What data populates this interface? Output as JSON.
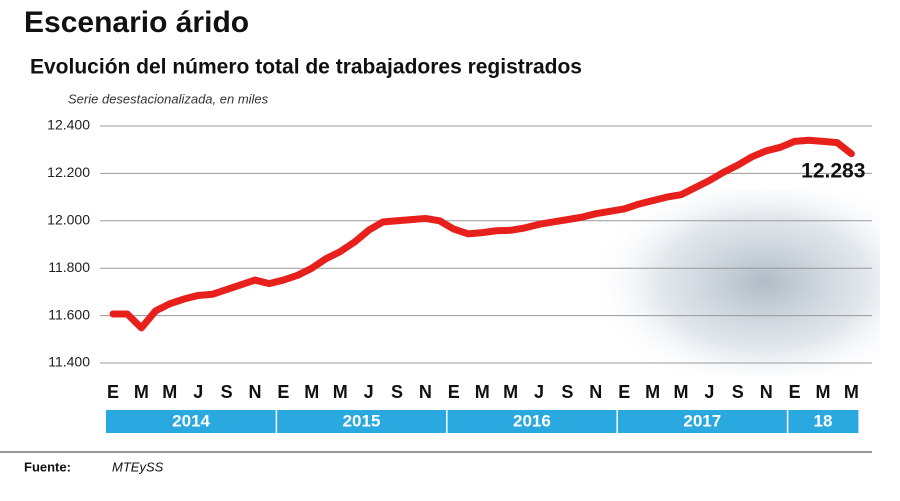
{
  "chart_data": {
    "type": "line",
    "title": "Escenario árido",
    "subtitle": "Evolución del número total de trabajadores registrados",
    "note": "Serie desestacionalizada, en miles",
    "source_label": "Fuente:",
    "source": "MTEySS",
    "categories": [
      "E",
      null,
      "M",
      null,
      "M",
      null,
      "J",
      null,
      "S",
      null,
      "N",
      null,
      "E",
      null,
      "M",
      null,
      "M",
      null,
      "J",
      null,
      "S",
      null,
      "N",
      null,
      "E",
      null,
      "M",
      null,
      "M",
      null,
      "J",
      null,
      "S",
      null,
      "N",
      null,
      "E",
      null,
      "M",
      null,
      "M",
      null,
      "J",
      null,
      "S",
      null,
      "N",
      null,
      "E",
      null,
      "M",
      null,
      "M"
    ],
    "years": [
      "2014",
      "2015",
      "2016",
      "2017",
      "18"
    ],
    "series": [
      {
        "color": "#e8201c",
        "values": [
          11607,
          11607,
          11548,
          11620,
          11650,
          11670,
          11685,
          11690,
          11710,
          11730,
          11750,
          11735,
          11750,
          11770,
          11800,
          11840,
          11870,
          11910,
          11960,
          11995,
          12000,
          12005,
          12010,
          12000,
          11965,
          11945,
          11950,
          11958,
          11960,
          11970,
          11985,
          11995,
          12005,
          12015,
          12030,
          12040,
          12050,
          12070,
          12085,
          12100,
          12110,
          12140,
          12170,
          12205,
          12235,
          12270,
          12295,
          12310,
          12335,
          12340,
          12335,
          12330,
          12283
        ],
        "value_labels": [
          null,
          null,
          null,
          null,
          null,
          null,
          null,
          null,
          null,
          null,
          null,
          null,
          null,
          null,
          null,
          null,
          null,
          null,
          null,
          null,
          null,
          null,
          null,
          null,
          null,
          null,
          null,
          null,
          null,
          null,
          null,
          null,
          null,
          null,
          null,
          null,
          null,
          null,
          null,
          null,
          null,
          null,
          null,
          null,
          null,
          null,
          null,
          null,
          null,
          null,
          null,
          null,
          "12.283"
        ]
      }
    ],
    "ylim": [
      11400,
      12400
    ],
    "yticks": [
      {
        "value": 11400,
        "label": "11.400"
      },
      {
        "value": 11600,
        "label": "11.600"
      },
      {
        "value": 11800,
        "label": "11.800"
      },
      {
        "value": 12000,
        "label": "12.000"
      },
      {
        "value": 12200,
        "label": "12.200"
      },
      {
        "value": 12400,
        "label": "12.400"
      }
    ],
    "grid": true,
    "band_color": "#29a9e0"
  }
}
